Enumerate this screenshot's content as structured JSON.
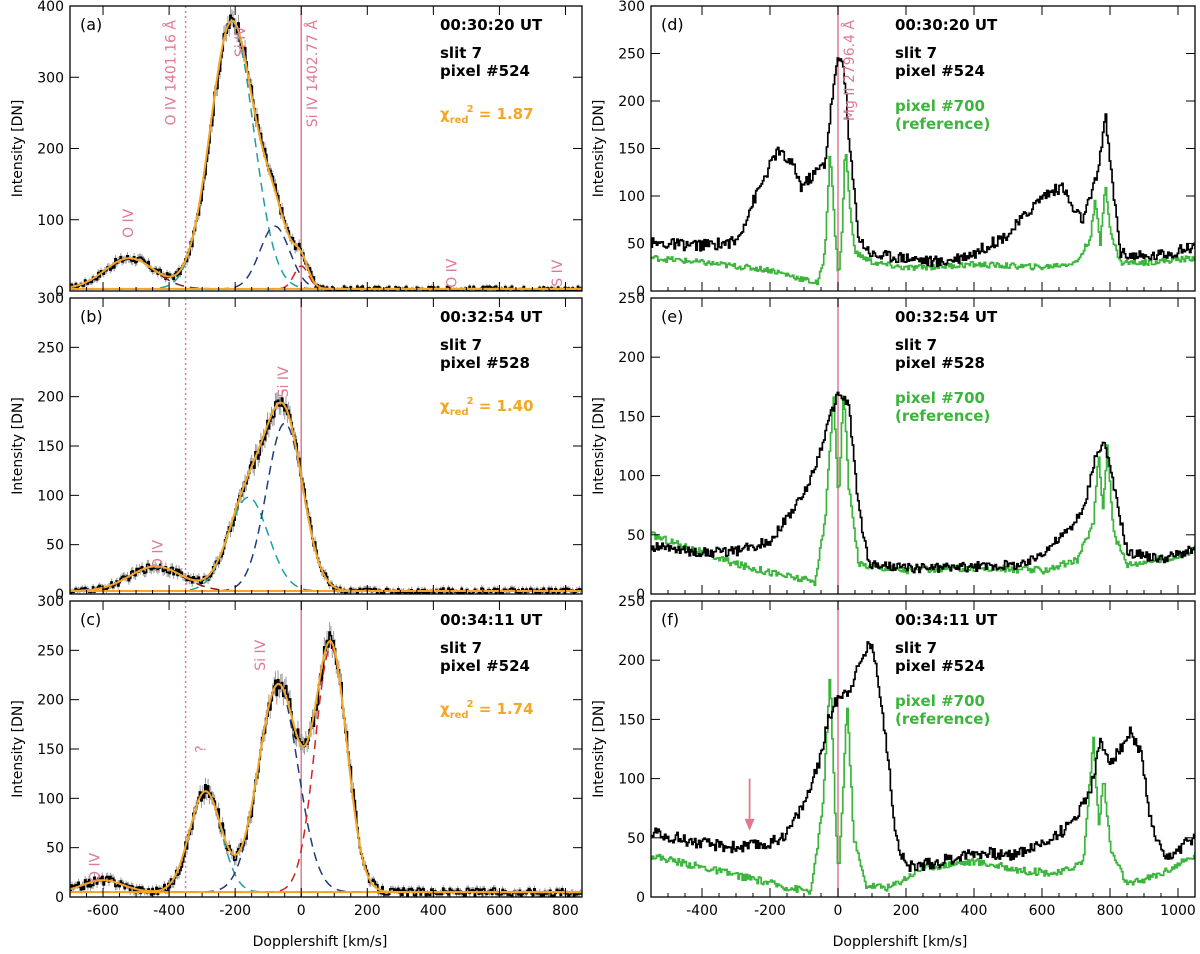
{
  "figure": {
    "xlabel": "Dopplershift [km/s]",
    "ylabel": "Intensity [DN]"
  },
  "colors": {
    "obs": "#000000",
    "fit": "#f5a623",
    "teal": "#1aa0a0",
    "navy": "#1f3b7a",
    "red": "#d62020",
    "brown": "#7a1f1f",
    "pink": "#e07a93",
    "green": "#3cb53c"
  },
  "chart_data": [
    {
      "id": "a",
      "type": "line",
      "label": "(a)",
      "time": "00:30:20 UT",
      "slit": "slit 7",
      "pixel": "pixel #524",
      "chi_label": "χred² = 1.87",
      "chi_name": "χ",
      "chi_sub": "red",
      "chi_sup": "2",
      "chi_val": "= 1.87",
      "xlim": [
        -700,
        850
      ],
      "ylim": [
        0,
        400
      ],
      "xticks": [
        -600,
        -400,
        -200,
        0,
        200,
        400,
        600,
        800
      ],
      "yticks": [
        0,
        100,
        200,
        300,
        400
      ],
      "vlines": [
        {
          "x": -350,
          "style": "dotted",
          "label": "O IV 1401.16 Å"
        },
        {
          "x": 0,
          "style": "solid",
          "label": "Si IV 1402.77 Å"
        }
      ],
      "annotations": [
        {
          "text": "O IV",
          "x": -510,
          "y": 95
        },
        {
          "text": "Si IV",
          "x": -170,
          "y": 350,
          "rotate": true
        },
        {
          "text": "O IV",
          "x": 470,
          "y": 25
        },
        {
          "text": "S IV",
          "x": 790,
          "y": 25
        }
      ],
      "components": [
        {
          "name": "O IV component",
          "color": "brown",
          "A": 43,
          "mu": -520,
          "s": 75
        },
        {
          "name": "Si IV main component",
          "color": "teal",
          "A": 375,
          "mu": -210,
          "s": 65
        },
        {
          "name": "Si IV blue-shifted component",
          "color": "navy",
          "A": 88,
          "mu": -80,
          "s": 45
        },
        {
          "name": "Si IV rest component",
          "color": "red",
          "A": 32,
          "mu": 0,
          "s": 22
        }
      ],
      "baseline": 3,
      "noise": 5
    },
    {
      "id": "b",
      "type": "line",
      "label": "(b)",
      "time": "00:32:54 UT",
      "slit": "slit 7",
      "pixel": "pixel #528",
      "chi_label": "χred² = 1.40",
      "chi_name": "χ",
      "chi_sub": "red",
      "chi_sup": "2",
      "chi_val": "= 1.40",
      "xlim": [
        -700,
        850
      ],
      "ylim": [
        0,
        300
      ],
      "xticks": [
        -600,
        -400,
        -200,
        0,
        200,
        400,
        600,
        800
      ],
      "yticks": [
        0,
        50,
        100,
        150,
        200,
        250,
        300
      ],
      "vlines": [
        {
          "x": -350,
          "style": "dotted",
          "label": ""
        },
        {
          "x": 0,
          "style": "solid",
          "label": ""
        }
      ],
      "annotations": [
        {
          "text": "O IV",
          "x": -420,
          "y": 40
        },
        {
          "text": "Si IV",
          "x": -40,
          "y": 215,
          "rotate": true
        }
      ],
      "components": [
        {
          "name": "O IV component",
          "color": "brown",
          "A": 25,
          "mu": -440,
          "s": 80
        },
        {
          "name": "Si IV low-velocity component",
          "color": "teal",
          "A": 95,
          "mu": -160,
          "s": 60
        },
        {
          "name": "Si IV main component",
          "color": "navy",
          "A": 170,
          "mu": -50,
          "s": 55
        }
      ],
      "baseline": 3,
      "noise": 4
    },
    {
      "id": "c",
      "type": "line",
      "label": "(c)",
      "time": "00:34:11 UT",
      "slit": "slit 7",
      "pixel": "pixel #524",
      "chi_label": "χred² = 1.74",
      "chi_name": "χ",
      "chi_sub": "red",
      "chi_sup": "2",
      "chi_val": "= 1.74",
      "xlim": [
        -700,
        850
      ],
      "ylim": [
        0,
        300
      ],
      "xticks": [
        -600,
        -400,
        -200,
        0,
        200,
        400,
        600,
        800
      ],
      "yticks": [
        0,
        50,
        100,
        150,
        200,
        250,
        300
      ],
      "vlines": [
        {
          "x": -350,
          "style": "dotted",
          "label": ""
        },
        {
          "x": 0,
          "style": "solid",
          "label": ""
        }
      ],
      "annotations": [
        {
          "text": "O IV",
          "x": -610,
          "y": 30
        },
        {
          "text": "?",
          "x": -290,
          "y": 150
        },
        {
          "text": "Si IV",
          "x": -110,
          "y": 245,
          "rotate": true
        }
      ],
      "components": [
        {
          "name": "O IV component",
          "color": "brown",
          "A": 12,
          "mu": -600,
          "s": 60
        },
        {
          "name": "unidentified component",
          "color": "teal",
          "A": 102,
          "mu": -290,
          "s": 48
        },
        {
          "name": "Si IV main component",
          "color": "navy",
          "A": 210,
          "mu": -70,
          "s": 60
        },
        {
          "name": "Si IV red-shifted component",
          "color": "red",
          "A": 248,
          "mu": 90,
          "s": 48
        }
      ],
      "baseline": 5,
      "noise": 5
    },
    {
      "id": "d",
      "type": "line",
      "label": "(d)",
      "time": "00:30:20 UT",
      "slit": "slit 7",
      "pixel": "pixel #524",
      "ref_line1": "pixel #700",
      "ref_line2": "(reference)",
      "xlim": [
        -550,
        1050
      ],
      "ylim": [
        0,
        300
      ],
      "xticks": [
        -400,
        -200,
        0,
        200,
        400,
        600,
        800,
        1000
      ],
      "yticks": [
        0,
        50,
        100,
        150,
        200,
        250,
        300
      ],
      "vlines": [
        {
          "x": 0,
          "style": "solid",
          "label": "Mg II 2796.4 Å"
        }
      ],
      "obs_profile": [
        [
          -550,
          50
        ],
        [
          -400,
          48
        ],
        [
          -300,
          52
        ],
        [
          -250,
          95
        ],
        [
          -180,
          148
        ],
        [
          -130,
          130
        ],
        [
          -110,
          110
        ],
        [
          -80,
          120
        ],
        [
          -40,
          135
        ],
        [
          -15,
          215
        ],
        [
          0,
          245
        ],
        [
          15,
          240
        ],
        [
          30,
          160
        ],
        [
          60,
          55
        ],
        [
          100,
          38
        ],
        [
          200,
          35
        ],
        [
          300,
          30
        ],
        [
          400,
          40
        ],
        [
          500,
          60
        ],
        [
          600,
          100
        ],
        [
          660,
          110
        ],
        [
          690,
          85
        ],
        [
          720,
          75
        ],
        [
          760,
          120
        ],
        [
          785,
          185
        ],
        [
          800,
          130
        ],
        [
          830,
          40
        ],
        [
          900,
          35
        ],
        [
          1000,
          42
        ],
        [
          1050,
          48
        ]
      ],
      "ref_profile": [
        [
          -550,
          35
        ],
        [
          -400,
          30
        ],
        [
          -200,
          22
        ],
        [
          -100,
          12
        ],
        [
          -60,
          8
        ],
        [
          -40,
          40
        ],
        [
          -25,
          150
        ],
        [
          -10,
          60
        ],
        [
          0,
          15
        ],
        [
          10,
          60
        ],
        [
          20,
          155
        ],
        [
          35,
          80
        ],
        [
          50,
          40
        ],
        [
          100,
          30
        ],
        [
          200,
          24
        ],
        [
          400,
          28
        ],
        [
          600,
          25
        ],
        [
          700,
          30
        ],
        [
          740,
          55
        ],
        [
          755,
          95
        ],
        [
          770,
          50
        ],
        [
          785,
          115
        ],
        [
          800,
          60
        ],
        [
          830,
          30
        ],
        [
          900,
          30
        ],
        [
          1000,
          33
        ],
        [
          1050,
          35
        ]
      ],
      "obs_noise": 6,
      "ref_noise": 3
    },
    {
      "id": "e",
      "type": "line",
      "label": "(e)",
      "time": "00:32:54 UT",
      "slit": "slit 7",
      "pixel": "pixel #528",
      "ref_line1": "pixel #700",
      "ref_line2": "(reference)",
      "xlim": [
        -550,
        1050
      ],
      "ylim": [
        0,
        250
      ],
      "xticks": [
        -400,
        -200,
        0,
        200,
        400,
        600,
        800,
        1000
      ],
      "yticks": [
        0,
        50,
        100,
        150,
        200,
        250
      ],
      "vlines": [
        {
          "x": 0,
          "style": "solid",
          "label": ""
        }
      ],
      "obs_profile": [
        [
          -550,
          40
        ],
        [
          -400,
          35
        ],
        [
          -300,
          36
        ],
        [
          -200,
          45
        ],
        [
          -150,
          65
        ],
        [
          -100,
          85
        ],
        [
          -60,
          115
        ],
        [
          -30,
          145
        ],
        [
          0,
          170
        ],
        [
          30,
          160
        ],
        [
          60,
          70
        ],
        [
          90,
          25
        ],
        [
          200,
          22
        ],
        [
          400,
          23
        ],
        [
          550,
          25
        ],
        [
          620,
          40
        ],
        [
          680,
          55
        ],
        [
          720,
          70
        ],
        [
          750,
          110
        ],
        [
          780,
          130
        ],
        [
          810,
          90
        ],
        [
          850,
          35
        ],
        [
          950,
          30
        ],
        [
          1050,
          38
        ]
      ],
      "ref_profile": [
        [
          -550,
          50
        ],
        [
          -450,
          40
        ],
        [
          -300,
          25
        ],
        [
          -150,
          15
        ],
        [
          -70,
          10
        ],
        [
          -40,
          60
        ],
        [
          -15,
          170
        ],
        [
          0,
          80
        ],
        [
          15,
          175
        ],
        [
          30,
          90
        ],
        [
          60,
          25
        ],
        [
          200,
          20
        ],
        [
          400,
          22
        ],
        [
          600,
          20
        ],
        [
          700,
          28
        ],
        [
          750,
          60
        ],
        [
          765,
          120
        ],
        [
          778,
          70
        ],
        [
          790,
          125
        ],
        [
          810,
          50
        ],
        [
          850,
          25
        ],
        [
          1000,
          32
        ],
        [
          1050,
          37
        ]
      ],
      "obs_noise": 4,
      "ref_noise": 3
    },
    {
      "id": "f",
      "type": "line",
      "label": "(f)",
      "time": "00:34:11 UT",
      "slit": "slit 7",
      "pixel": "pixel #524",
      "ref_line1": "pixel #700",
      "ref_line2": "(reference)",
      "xlim": [
        -550,
        1050
      ],
      "ylim": [
        0,
        250
      ],
      "xticks": [
        -400,
        -200,
        0,
        200,
        400,
        600,
        800,
        1000
      ],
      "yticks": [
        0,
        50,
        100,
        150,
        200,
        250
      ],
      "vlines": [
        {
          "x": 0,
          "style": "solid",
          "label": ""
        }
      ],
      "arrow_x": -260,
      "obs_profile": [
        [
          -550,
          55
        ],
        [
          -400,
          45
        ],
        [
          -300,
          42
        ],
        [
          -200,
          45
        ],
        [
          -150,
          55
        ],
        [
          -100,
          80
        ],
        [
          -60,
          110
        ],
        [
          -30,
          150
        ],
        [
          0,
          170
        ],
        [
          30,
          175
        ],
        [
          60,
          195
        ],
        [
          90,
          215
        ],
        [
          110,
          200
        ],
        [
          140,
          130
        ],
        [
          170,
          50
        ],
        [
          200,
          25
        ],
        [
          300,
          30
        ],
        [
          400,
          38
        ],
        [
          500,
          35
        ],
        [
          600,
          45
        ],
        [
          680,
          60
        ],
        [
          740,
          90
        ],
        [
          770,
          130
        ],
        [
          800,
          115
        ],
        [
          830,
          125
        ],
        [
          860,
          140
        ],
        [
          890,
          120
        ],
        [
          920,
          60
        ],
        [
          960,
          30
        ],
        [
          1050,
          52
        ]
      ],
      "ref_profile": [
        [
          -550,
          35
        ],
        [
          -400,
          25
        ],
        [
          -250,
          15
        ],
        [
          -150,
          8
        ],
        [
          -80,
          5
        ],
        [
          -45,
          80
        ],
        [
          -25,
          190
        ],
        [
          -10,
          70
        ],
        [
          0,
          20
        ],
        [
          10,
          70
        ],
        [
          25,
          165
        ],
        [
          45,
          50
        ],
        [
          80,
          10
        ],
        [
          150,
          8
        ],
        [
          250,
          25
        ],
        [
          400,
          30
        ],
        [
          550,
          22
        ],
        [
          650,
          20
        ],
        [
          720,
          30
        ],
        [
          750,
          135
        ],
        [
          765,
          60
        ],
        [
          780,
          100
        ],
        [
          800,
          40
        ],
        [
          850,
          10
        ],
        [
          950,
          20
        ],
        [
          1050,
          35
        ]
      ],
      "obs_noise": 5,
      "ref_noise": 3
    }
  ]
}
